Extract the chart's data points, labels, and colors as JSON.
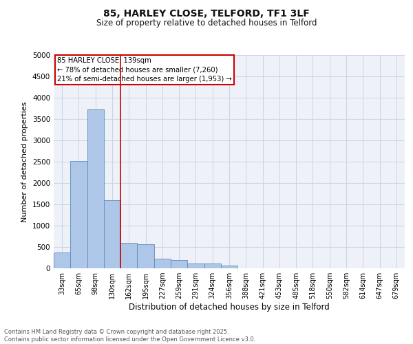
{
  "title_line1": "85, HARLEY CLOSE, TELFORD, TF1 3LF",
  "title_line2": "Size of property relative to detached houses in Telford",
  "xlabel": "Distribution of detached houses by size in Telford",
  "ylabel": "Number of detached properties",
  "categories": [
    "33sqm",
    "65sqm",
    "98sqm",
    "130sqm",
    "162sqm",
    "195sqm",
    "227sqm",
    "259sqm",
    "291sqm",
    "324sqm",
    "356sqm",
    "388sqm",
    "421sqm",
    "453sqm",
    "485sqm",
    "518sqm",
    "550sqm",
    "582sqm",
    "614sqm",
    "647sqm",
    "679sqm"
  ],
  "values": [
    370,
    2520,
    3720,
    1590,
    600,
    570,
    220,
    200,
    110,
    110,
    60,
    0,
    0,
    0,
    0,
    0,
    0,
    0,
    0,
    0,
    0
  ],
  "bar_color": "#aec6e8",
  "bar_edge_color": "#5b8db8",
  "grid_color": "#c8d4e8",
  "background_color": "#eef2f8",
  "vline_color": "#cc0000",
  "vline_x": 3.5,
  "annotation_text": "85 HARLEY CLOSE: 139sqm\n← 78% of detached houses are smaller (7,260)\n21% of semi-detached houses are larger (1,953) →",
  "annotation_box_color": "#cc0000",
  "ylim": [
    0,
    5000
  ],
  "yticks": [
    0,
    500,
    1000,
    1500,
    2000,
    2500,
    3000,
    3500,
    4000,
    4500,
    5000
  ],
  "footer_line1": "Contains HM Land Registry data © Crown copyright and database right 2025.",
  "footer_line2": "Contains public sector information licensed under the Open Government Licence v3.0."
}
